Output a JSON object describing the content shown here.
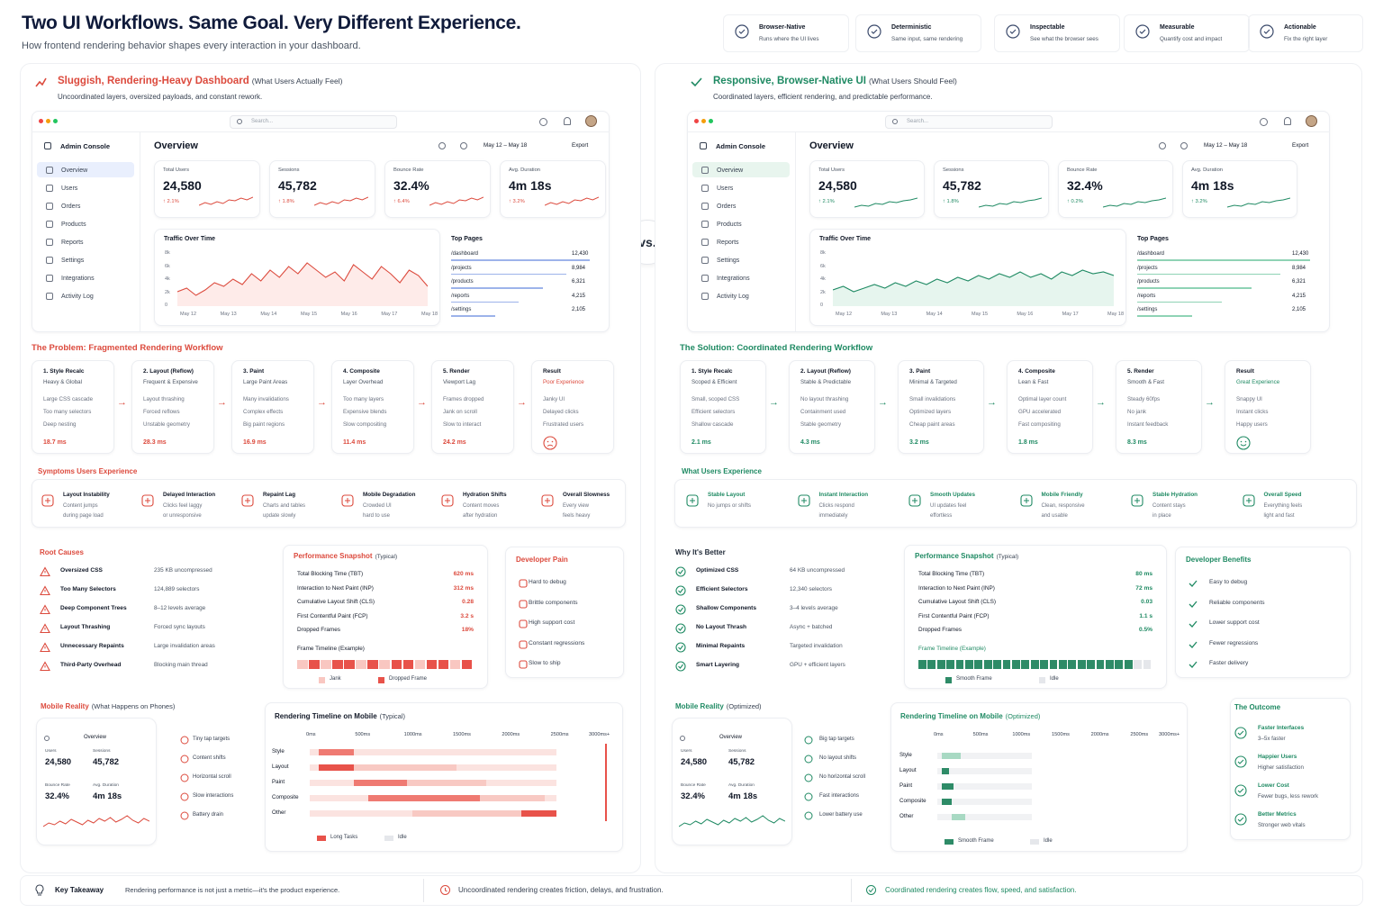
{
  "header": {
    "title": "Two UI Workflows. Same Goal. Very Different Experience.",
    "subtitle": "How frontend rendering behavior shapes every interaction in your dashboard.",
    "badges": [
      {
        "title": "Browser-Native",
        "desc": "Runs where the UI lives",
        "icon": "shield-check-icon"
      },
      {
        "title": "Deterministic",
        "desc": "Same input, same rendering",
        "icon": "refresh-icon"
      },
      {
        "title": "Inspectable",
        "desc": "See what the browser sees",
        "icon": "eye-icon"
      },
      {
        "title": "Measurable",
        "desc": "Quantify cost and impact",
        "icon": "chart-doc-icon"
      },
      {
        "title": "Actionable",
        "desc": "Fix the right layer",
        "icon": "clipboard-icon"
      }
    ]
  },
  "vs": "vs.",
  "left": {
    "title": "Sluggish, Rendering-Heavy Dashboard",
    "title_note": "(What Users Actually Feel)",
    "subtitle": "Uncoordinated layers, oversized payloads, and constant rework.",
    "accent": "#dc4a3d"
  },
  "right": {
    "title": "Responsive, Browser-Native UI",
    "title_note": "(What Users Should Feel)",
    "subtitle": "Coordinated layers, efficient rendering, and predictable performance.",
    "accent": "#1f8a63"
  },
  "dashboard": {
    "search_placeholder": "Search...",
    "brand": "Admin Console",
    "page_title": "Overview",
    "date_range": "May 12 – May 18",
    "export": "Export",
    "nav": [
      "Overview",
      "Users",
      "Orders",
      "Products",
      "Reports",
      "Settings",
      "Integrations",
      "Activity Log"
    ],
    "kpis": [
      {
        "label": "Total Users",
        "value": "24,580"
      },
      {
        "label": "Sessions",
        "value": "45,782"
      },
      {
        "label": "Bounce Rate",
        "value": "32.4%"
      },
      {
        "label": "Avg. Duration",
        "value": "4m 18s"
      }
    ],
    "kpi_deltas_left": [
      "↑ 2.1%",
      "↑ 1.8%",
      "↑ 6.4%",
      "↑ 3.2%"
    ],
    "kpi_deltas_right": [
      "↑ 2.1%",
      "↑ 1.8%",
      "↑ 0.2%",
      "↑ 3.2%"
    ],
    "traffic_title": "Traffic Over Time",
    "y_ticks": [
      "8k",
      "6k",
      "4k",
      "2k",
      "0"
    ],
    "x_ticks": [
      "May 12",
      "May 13",
      "May 14",
      "May 15",
      "May 16",
      "May 17",
      "May 18"
    ],
    "top_pages_title": "Top Pages",
    "top_pages": [
      {
        "page": "/dashboard",
        "value": "12,430"
      },
      {
        "page": "/projects",
        "value": "8,984"
      },
      {
        "page": "/products",
        "value": "6,321"
      },
      {
        "page": "/reports",
        "value": "4,215"
      },
      {
        "page": "/settings",
        "value": "2,105"
      }
    ]
  },
  "problem": {
    "title": "The Problem: Fragmented Rendering Workflow",
    "steps": [
      {
        "name": "1. Style Recalc",
        "sub": "Heavy & Global",
        "items": [
          "Large CSS cascade",
          "Too many selectors",
          "Deep nesting"
        ],
        "ms": "18.7 ms"
      },
      {
        "name": "2. Layout (Reflow)",
        "sub": "Frequent & Expensive",
        "items": [
          "Layout thrashing",
          "Forced reflows",
          "Unstable geometry"
        ],
        "ms": "28.3 ms"
      },
      {
        "name": "3. Paint",
        "sub": "Large Paint Areas",
        "items": [
          "Many invalidations",
          "Complex effects",
          "Big paint regions"
        ],
        "ms": "16.9 ms"
      },
      {
        "name": "4. Composite",
        "sub": "Layer Overhead",
        "items": [
          "Too many layers",
          "Expensive blends",
          "Slow compositing"
        ],
        "ms": "11.4 ms"
      },
      {
        "name": "5. Render",
        "sub": "Viewport Lag",
        "items": [
          "Frames dropped",
          "Jank on scroll",
          "Slow to interact"
        ],
        "ms": "24.2 ms"
      }
    ],
    "result": {
      "name": "Result",
      "sub": "Poor Experience",
      "items": [
        "Janky UI",
        "Delayed clicks",
        "Frustrated users"
      ]
    }
  },
  "solution": {
    "title": "The Solution: Coordinated Rendering Workflow",
    "steps": [
      {
        "name": "1. Style Recalc",
        "sub": "Scoped & Efficient",
        "items": [
          "Small, scoped CSS",
          "Efficient selectors",
          "Shallow cascade"
        ],
        "ms": "2.1 ms"
      },
      {
        "name": "2. Layout (Reflow)",
        "sub": "Stable & Predictable",
        "items": [
          "No layout thrashing",
          "Containment used",
          "Stable geometry"
        ],
        "ms": "4.3 ms"
      },
      {
        "name": "3. Paint",
        "sub": "Minimal & Targeted",
        "items": [
          "Small invalidations",
          "Optimized layers",
          "Cheap paint areas"
        ],
        "ms": "3.2 ms"
      },
      {
        "name": "4. Composite",
        "sub": "Lean & Fast",
        "items": [
          "Optimal layer count",
          "GPU accelerated",
          "Fast compositing"
        ],
        "ms": "1.8 ms"
      },
      {
        "name": "5. Render",
        "sub": "Smooth & Fast",
        "items": [
          "Steady 60fps",
          "No jank",
          "Instant feedback"
        ],
        "ms": "8.3 ms"
      }
    ],
    "result": {
      "name": "Result",
      "sub": "Great Experience",
      "items": [
        "Snappy UI",
        "Instant clicks",
        "Happy users"
      ]
    }
  },
  "symptoms": {
    "title": "Symptoms Users Experience",
    "items": [
      {
        "t": "Layout Instability",
        "d": [
          "Content jumps",
          "during page load"
        ]
      },
      {
        "t": "Delayed Interaction",
        "d": [
          "Clicks feel laggy",
          "or unresponsive"
        ]
      },
      {
        "t": "Repaint Lag",
        "d": [
          "Charts and tables",
          "update slowly"
        ]
      },
      {
        "t": "Mobile Degradation",
        "d": [
          "Crowded UI",
          "hard to use"
        ]
      },
      {
        "t": "Hydration Shifts",
        "d": [
          "Content moves",
          "after hydration"
        ]
      },
      {
        "t": "Overall Slowness",
        "d": [
          "Every view",
          "feels heavy"
        ]
      }
    ]
  },
  "experience": {
    "title": "What Users Experience",
    "items": [
      {
        "t": "Stable Layout",
        "d": [
          "No jumps or shifts"
        ]
      },
      {
        "t": "Instant Interaction",
        "d": [
          "Clicks respond",
          "immediately"
        ]
      },
      {
        "t": "Smooth Updates",
        "d": [
          "UI updates feel",
          "effortless"
        ]
      },
      {
        "t": "Mobile Friendly",
        "d": [
          "Clean, responsive",
          "and usable"
        ]
      },
      {
        "t": "Stable Hydration",
        "d": [
          "Content stays",
          "in place"
        ]
      },
      {
        "t": "Overall Speed",
        "d": [
          "Everything feels",
          "light and fast"
        ]
      }
    ]
  },
  "root_causes": {
    "title": "Root Causes",
    "items": [
      {
        "k": "Oversized CSS",
        "v": "235 KB uncompressed"
      },
      {
        "k": "Too Many Selectors",
        "v": "124,889 selectors"
      },
      {
        "k": "Deep Component Trees",
        "v": "8–12 levels average"
      },
      {
        "k": "Layout Thrashing",
        "v": "Forced sync layouts"
      },
      {
        "k": "Unnecessary Repaints",
        "v": "Large invalidation areas"
      },
      {
        "k": "Third-Party Overhead",
        "v": "Blocking main thread"
      }
    ]
  },
  "why_better": {
    "title": "Why It's Better",
    "items": [
      {
        "k": "Optimized CSS",
        "v": "64 KB uncompressed"
      },
      {
        "k": "Efficient Selectors",
        "v": "12,340 selectors"
      },
      {
        "k": "Shallow Components",
        "v": "3–4 levels average"
      },
      {
        "k": "No Layout Thrash",
        "v": "Async + batched"
      },
      {
        "k": "Minimal Repaints",
        "v": "Targeted invalidation"
      },
      {
        "k": "Smart Layering",
        "v": "GPU + efficient layers"
      }
    ]
  },
  "perf_left": {
    "title": "Performance Snapshot",
    "note": "(Typical)",
    "rows": [
      {
        "k": "Total Blocking Time (TBT)",
        "v": "620 ms"
      },
      {
        "k": "Interaction to Next Paint (INP)",
        "v": "312 ms"
      },
      {
        "k": "Cumulative Layout Shift (CLS)",
        "v": "0.28"
      },
      {
        "k": "First Contentful Paint (FCP)",
        "v": "3.2 s"
      },
      {
        "k": "Dropped Frames",
        "v": "18%"
      }
    ],
    "timeline": "Frame Timeline (Example)",
    "legend": [
      "Jank",
      "Dropped Frame"
    ]
  },
  "perf_right": {
    "title": "Performance Snapshot",
    "note": "(Typical)",
    "rows": [
      {
        "k": "Total Blocking Time (TBT)",
        "v": "80 ms"
      },
      {
        "k": "Interaction to Next Paint (INP)",
        "v": "72 ms"
      },
      {
        "k": "Cumulative Layout Shift (CLS)",
        "v": "0.03"
      },
      {
        "k": "First Contentful Paint (FCP)",
        "v": "1.1 s"
      },
      {
        "k": "Dropped Frames",
        "v": "0.5%"
      }
    ],
    "timeline": "Frame Timeline (Example)",
    "legend": [
      "Smooth Frame",
      "Idle"
    ]
  },
  "dev_pain": {
    "title": "Developer Pain",
    "items": [
      "Hard to debug",
      "Brittle components",
      "High support cost",
      "Constant regressions",
      "Slow to ship"
    ]
  },
  "dev_benefits": {
    "title": "Developer Benefits",
    "items": [
      "Easy to debug",
      "Reliable components",
      "Lower support cost",
      "Fewer regressions",
      "Faster delivery"
    ]
  },
  "mobile_left": {
    "title": "Mobile Reality",
    "note": "(What Happens on Phones)",
    "issues": [
      "Tiny tap targets",
      "Content shifts",
      "Horizontal scroll",
      "Slow interactions",
      "Battery drain"
    ]
  },
  "mobile_right": {
    "title": "Mobile Reality",
    "note": "(Optimized)",
    "issues": [
      "Big tap targets",
      "No layout shifts",
      "No horizontal scroll",
      "Fast interactions",
      "Lower battery use"
    ]
  },
  "phone": {
    "title": "Overview",
    "kpis": [
      {
        "label": "Users",
        "value": "24,580"
      },
      {
        "label": "Sessions",
        "value": "45,782"
      },
      {
        "label": "Bounce Rate",
        "value": "32.4%"
      },
      {
        "label": "Avg. Duration",
        "value": "4m 18s"
      }
    ]
  },
  "timeline_left": {
    "title": "Rendering Timeline on Mobile",
    "note": "(Typical)",
    "ticks": [
      "0ms",
      "500ms",
      "1000ms",
      "1500ms",
      "2000ms",
      "2500ms",
      "3000ms+"
    ],
    "rows": [
      "Style",
      "Layout",
      "Paint",
      "Composite",
      "Other"
    ],
    "legend": [
      "Long Tasks",
      "Idle"
    ]
  },
  "timeline_right": {
    "title": "Rendering Timeline on Mobile",
    "note": "(Optimized)",
    "ticks": [
      "0ms",
      "500ms",
      "1000ms",
      "1500ms",
      "2000ms",
      "2500ms",
      "3000ms+"
    ],
    "rows": [
      "Style",
      "Layout",
      "Paint",
      "Composite",
      "Other"
    ],
    "legend": [
      "Smooth Frame",
      "Idle"
    ]
  },
  "outcome": {
    "title": "The Outcome",
    "items": [
      {
        "t": "Faster Interfaces",
        "d": "3–5x faster"
      },
      {
        "t": "Happier Users",
        "d": "Higher satisfaction"
      },
      {
        "t": "Lower Cost",
        "d": "Fewer bugs, less rework"
      },
      {
        "t": "Better Metrics",
        "d": "Stronger web vitals"
      }
    ]
  },
  "footer": {
    "key": "Key Takeaway",
    "key_text": "Rendering performance is not just a metric—it's the product experience.",
    "bad": "Uncoordinated rendering creates friction, delays, and frustration.",
    "good": "Coordinated rendering creates flow, speed, and satisfaction."
  },
  "colors": {
    "bad": "#dc4a3d",
    "good": "#1f8a63"
  }
}
